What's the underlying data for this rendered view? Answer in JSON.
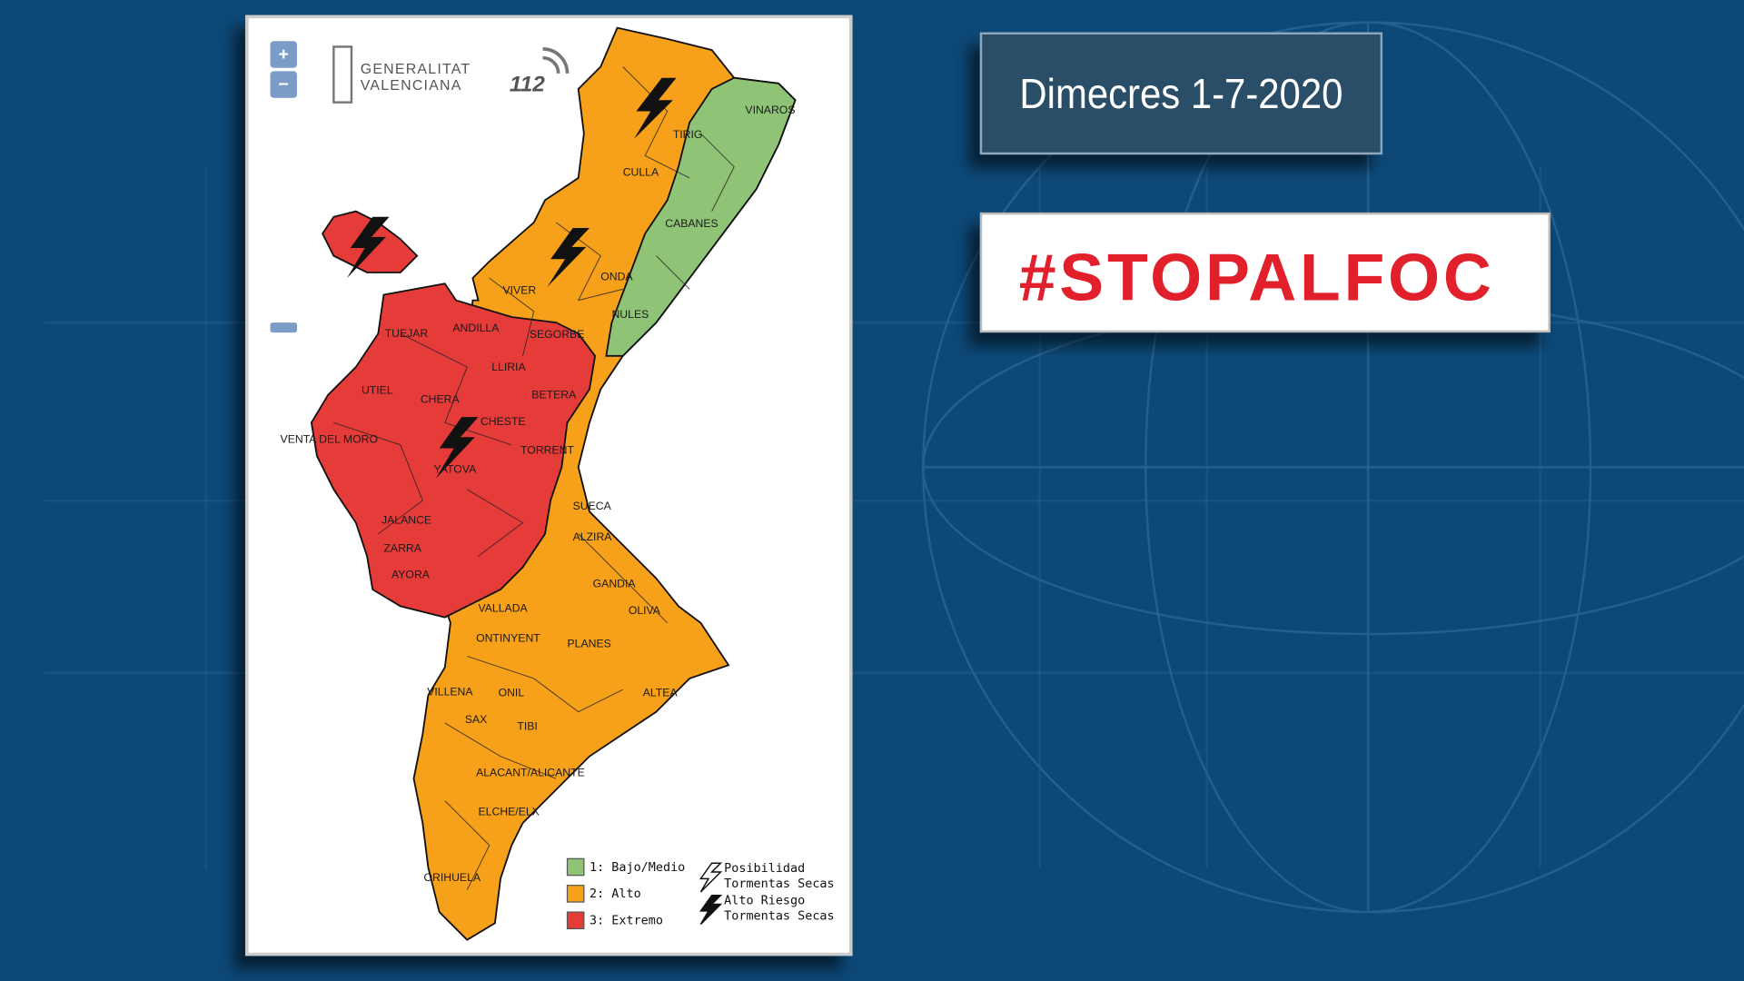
{
  "header": {
    "date": "Dimecres 1-7-2020",
    "campaign": "#STOPALFOC"
  },
  "map": {
    "zoom": [
      "+",
      "−"
    ],
    "logos": {
      "generalitat": [
        "GENERALITAT",
        "VALENCIANA"
      ],
      "emergency": "112"
    },
    "towns": [
      "VINAROS",
      "TIRIG",
      "CULLA",
      "CABANES",
      "ONDA",
      "VIVER",
      "NULES",
      "SEGORBE",
      "ANDILLA",
      "TUEJAR",
      "LLIRIA",
      "UTIEL",
      "CHERA",
      "BETERA",
      "CHESTE",
      "VENTA DEL MORO",
      "TORRENT",
      "YATOVA",
      "SUECA",
      "JALANCE",
      "ZARRA",
      "AYORA",
      "ALZIRA",
      "GANDIA",
      "VALLADA",
      "OLIVA",
      "ONTINYENT",
      "PLANES",
      "VILLENA",
      "ONIL",
      "SAX",
      "TIBI",
      "ALTEA",
      "ALACANT/ALICANTE",
      "ELCHE/ELX",
      "ORIHUELA"
    ],
    "legend": {
      "levels": [
        {
          "label": "1: Bajo/Medio",
          "color": "#8fc476"
        },
        {
          "label": "2: Alto",
          "color": "#f7a11a"
        },
        {
          "label": "3: Extremo",
          "color": "#e53b39"
        }
      ],
      "storms": [
        {
          "label": [
            "Posibilidad",
            "Tormentas Secas"
          ]
        },
        {
          "label": [
            "Alto Riesgo",
            "Tormentas Secas"
          ]
        }
      ]
    }
  }
}
